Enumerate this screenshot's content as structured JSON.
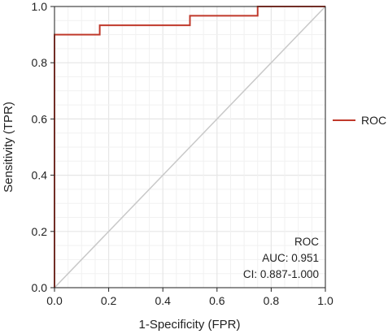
{
  "chart_data": {
    "type": "line",
    "title": "",
    "xlabel": "1-Specificity (FPR)",
    "ylabel": "Sensitivity (TPR)",
    "xlim": [
      0,
      1
    ],
    "ylim": [
      0,
      1
    ],
    "x_ticks": [
      "0.0",
      "0.2",
      "0.4",
      "0.6",
      "0.8",
      "1.0"
    ],
    "y_ticks": [
      "0.0",
      "0.2",
      "0.4",
      "0.6",
      "0.8",
      "1.0"
    ],
    "grid": true,
    "legend_position": "right",
    "series": [
      {
        "name": "ROC",
        "color": "#c0392b",
        "x": [
          0.0,
          0.0,
          0.0,
          0.167,
          0.167,
          0.5,
          0.5,
          0.75,
          0.75,
          1.0
        ],
        "y": [
          0.0,
          0.0,
          0.9,
          0.9,
          0.933,
          0.933,
          0.967,
          0.967,
          1.0,
          1.0
        ]
      }
    ],
    "reference_line": {
      "x": [
        0,
        1
      ],
      "y": [
        0,
        1
      ],
      "color": "#c8c8c8"
    },
    "annotation": [
      "ROC",
      "AUC: 0.951",
      "CI: 0.887-1.000"
    ]
  }
}
